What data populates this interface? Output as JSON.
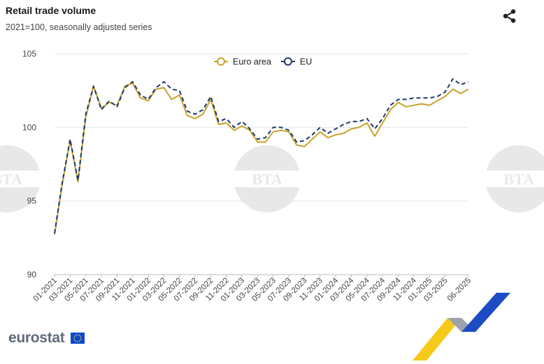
{
  "header": {
    "title": "Retail trade volume",
    "subtitle": "2021=100, seasonally adjusted series"
  },
  "icons": {
    "share": "share-icon",
    "watermark": "bta-watermark-logo",
    "brand_flag": "eu-flag-icon"
  },
  "brand": {
    "name": "eurostat"
  },
  "colors": {
    "euro_area": "#c9a22a",
    "eu": "#1f3a6e",
    "grid": "#e6e6e6",
    "axis_text": "#444444",
    "flag_blue": "#0e47cb",
    "flag_star": "#ffd617",
    "deco_yellow": "#f4c400",
    "deco_blue": "#1d4bc4"
  },
  "chart_data": {
    "type": "line",
    "title": "Retail trade volume",
    "subtitle": "2021=100, seasonally adjusted series",
    "xlabel": "",
    "ylabel": "",
    "ylim": [
      90,
      105
    ],
    "yticks": [
      90,
      95,
      100,
      105
    ],
    "grid": true,
    "legend_position": "top-center",
    "x_tick_labels": [
      "01-2021",
      "03-2021",
      "05-2021",
      "07-2021",
      "09-2021",
      "11-2021",
      "01-2022",
      "03-2022",
      "05-2022",
      "07-2022",
      "09-2022",
      "11-2022",
      "01-2023",
      "03-2023",
      "05-2023",
      "07-2023",
      "09-2023",
      "11-2023",
      "01-2024",
      "03-2024",
      "05-2024",
      "07-2024",
      "09-2024",
      "11-2024",
      "01-2025",
      "03-2025",
      "06-2025"
    ],
    "x": [
      "01-2021",
      "02-2021",
      "03-2021",
      "04-2021",
      "05-2021",
      "06-2021",
      "07-2021",
      "08-2021",
      "09-2021",
      "10-2021",
      "11-2021",
      "12-2021",
      "01-2022",
      "02-2022",
      "03-2022",
      "04-2022",
      "05-2022",
      "06-2022",
      "07-2022",
      "08-2022",
      "09-2022",
      "10-2022",
      "11-2022",
      "12-2022",
      "01-2023",
      "02-2023",
      "03-2023",
      "04-2023",
      "05-2023",
      "06-2023",
      "07-2023",
      "08-2023",
      "09-2023",
      "10-2023",
      "11-2023",
      "12-2023",
      "01-2024",
      "02-2024",
      "03-2024",
      "04-2024",
      "05-2024",
      "06-2024",
      "07-2024",
      "08-2024",
      "09-2024",
      "10-2024",
      "11-2024",
      "12-2024",
      "01-2025",
      "02-2025",
      "03-2025",
      "04-2025",
      "05-2025",
      "06-2025"
    ],
    "series": [
      {
        "name": "Euro area",
        "values": [
          92.7,
          96.2,
          99.1,
          96.3,
          100.7,
          102.8,
          101.3,
          101.7,
          101.5,
          102.8,
          103.0,
          102.0,
          101.8,
          102.6,
          102.7,
          101.9,
          102.2,
          100.8,
          100.6,
          100.9,
          101.9,
          100.2,
          100.3,
          99.8,
          100.1,
          99.8,
          99.0,
          99.0,
          99.7,
          99.8,
          99.7,
          98.8,
          98.7,
          99.2,
          99.7,
          99.3,
          99.5,
          99.6,
          99.9,
          100.0,
          100.3,
          99.4,
          100.3,
          101.2,
          101.7,
          101.4,
          101.5,
          101.6,
          101.5,
          101.8,
          102.1,
          102.6,
          102.3,
          102.6
        ]
      },
      {
        "name": "EU",
        "values": [
          92.8,
          96.3,
          99.2,
          96.4,
          100.9,
          102.8,
          101.2,
          101.8,
          101.4,
          102.7,
          103.1,
          102.2,
          101.9,
          102.7,
          103.1,
          102.6,
          102.5,
          101.1,
          100.9,
          101.2,
          102.1,
          100.4,
          100.6,
          100.0,
          100.4,
          99.9,
          99.2,
          99.3,
          100.0,
          100.0,
          99.8,
          99.0,
          99.1,
          99.5,
          100.0,
          99.6,
          99.9,
          100.2,
          100.4,
          100.4,
          100.6,
          99.9,
          100.6,
          101.5,
          101.9,
          101.9,
          102.0,
          102.0,
          102.0,
          102.1,
          102.4,
          103.3,
          102.9,
          103.1
        ]
      }
    ]
  }
}
